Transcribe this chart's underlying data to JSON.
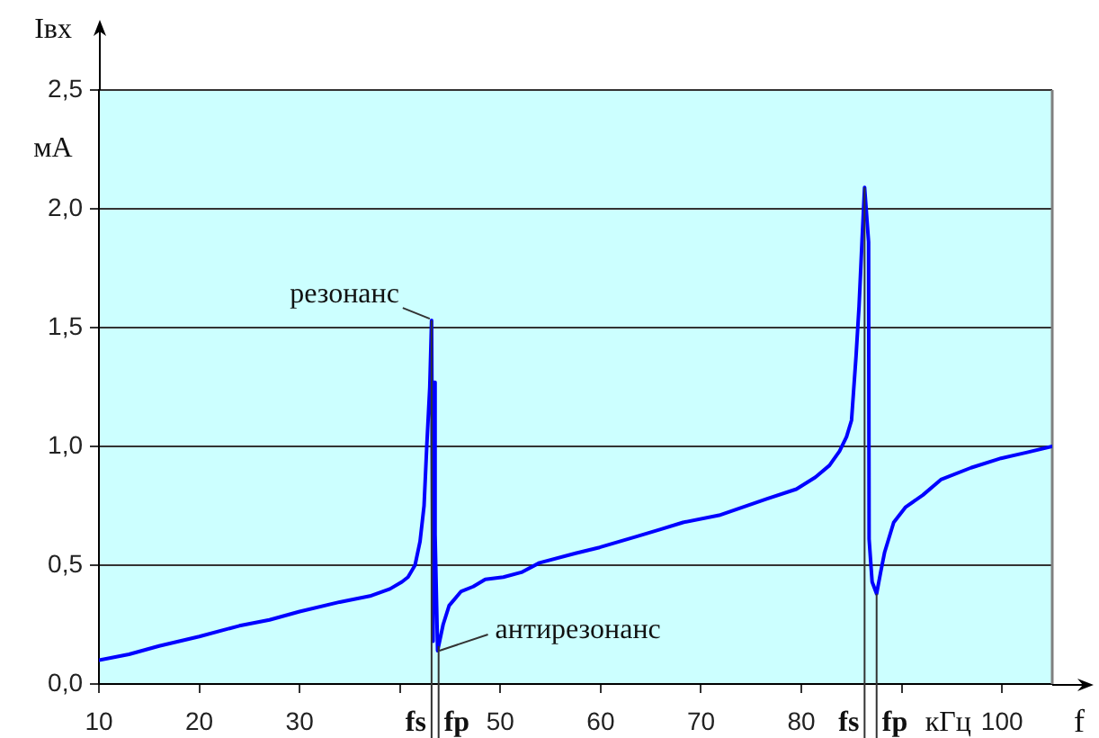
{
  "chart_data": {
    "type": "line",
    "xlabel": "f",
    "ylabel": "Iвх",
    "x": [
      10,
      13,
      16,
      20,
      24,
      27,
      30,
      34,
      37,
      39,
      40.2,
      40.8,
      41.5,
      42.0,
      42.4,
      42.67,
      42.97,
      43.15,
      43.3,
      43.4,
      43.5,
      43.75,
      44.3,
      44.9,
      46.1,
      47.3,
      48.5,
      50.3,
      52.1,
      53.9,
      57.5,
      59.9,
      63.5,
      65.9,
      68.2,
      71.8,
      76.6,
      79.5,
      81.4,
      82.8,
      83.8,
      84.5,
      85.0,
      85.45,
      85.75,
      86.05,
      86.3,
      86.7,
      86.75,
      87.05,
      87.5,
      87.9,
      88.3,
      89.2,
      90.4,
      92.1,
      93.9,
      96.9,
      99.9,
      102.5,
      105
    ],
    "series": [
      {
        "color": "#0000ff",
        "values": [
          0.1,
          0.125,
          0.16,
          0.2,
          0.245,
          0.27,
          0.305,
          0.345,
          0.37,
          0.4,
          0.43,
          0.45,
          0.5,
          0.6,
          0.75,
          1.0,
          1.25,
          1.53,
          0.18,
          1.27,
          0.63,
          0.14,
          0.25,
          0.33,
          0.39,
          0.41,
          0.44,
          0.45,
          0.47,
          0.51,
          0.55,
          0.575,
          0.62,
          0.65,
          0.68,
          0.71,
          0.78,
          0.82,
          0.87,
          0.92,
          0.98,
          1.04,
          1.11,
          1.38,
          1.59,
          1.87,
          2.09,
          1.86,
          0.61,
          0.43,
          0.38,
          0.47,
          0.555,
          0.68,
          0.745,
          0.795,
          0.86,
          0.91,
          0.95,
          0.975,
          1.0
        ]
      }
    ],
    "xlim": [
      10,
      105
    ],
    "xticks": [
      10,
      20,
      30,
      {
        "value": 40,
        "label": null
      },
      50,
      60,
      70,
      80,
      {
        "value": 90,
        "label": null
      },
      100
    ],
    "ylim": [
      0,
      2.5
    ],
    "yticks": [
      {
        "value": 0,
        "label": "0,0"
      },
      {
        "value": 0.5,
        "label": "0,5"
      },
      {
        "value": 1,
        "label": "1,0"
      },
      {
        "value": 1.5,
        "label": "1,5"
      },
      {
        "value": 2,
        "label": "2,0"
      },
      {
        "value": 2.5,
        "label": "2,5"
      }
    ],
    "grid": "y",
    "marker": "none",
    "line_style": "solid",
    "ref_lines": [
      {
        "axis": "x",
        "value": 43.15,
        "label": "fs",
        "color": "#333333"
      },
      {
        "axis": "x",
        "value": 43.85,
        "label": "fp",
        "color": "#333333"
      },
      {
        "axis": "x",
        "value": 86.3,
        "label": "fs",
        "color": "#333333"
      },
      {
        "axis": "x",
        "value": 87.5,
        "label": "fp",
        "color": "#333333"
      }
    ],
    "annotations": [
      {
        "text": "резонанс",
        "x": 43.15,
        "y": 1.53
      },
      {
        "text": "антирезонанс",
        "x": 43.75,
        "y": 0.14
      },
      "мА",
      "кГц"
    ]
  }
}
